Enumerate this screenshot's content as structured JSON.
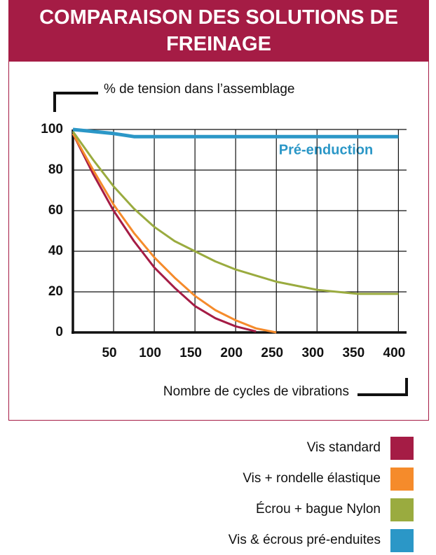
{
  "chart_data": {
    "type": "line",
    "title": "COMPARAISON DES SOLUTIONS DE FREINAGE",
    "y_label": "% de tension dans l’assemblage",
    "x_label": "Nombre de cycles de vibrations",
    "annotation": "Pré-enduction",
    "x": [
      0,
      25,
      50,
      75,
      100,
      125,
      150,
      175,
      200,
      225,
      250,
      300,
      350,
      400
    ],
    "series": [
      {
        "name": "Vis standard",
        "color": "#a51c45",
        "values": [
          98,
          78,
          60,
          45,
          32,
          22,
          13,
          7,
          3,
          0.5,
          null,
          null,
          null,
          null
        ]
      },
      {
        "name": "Vis + rondelle élastique",
        "color": "#f58b2b",
        "values": [
          98,
          80,
          63,
          49,
          37,
          27,
          18,
          11,
          6,
          2,
          0,
          null,
          null,
          null
        ]
      },
      {
        "name": "Écrou + bague Nylon",
        "color": "#9aab3f",
        "values": [
          99,
          85,
          72,
          61,
          52,
          45,
          40,
          35,
          31,
          28,
          25,
          21,
          19,
          19
        ]
      },
      {
        "name": "Vis & écrous pré-enduites",
        "color": "#2b97c7",
        "values": [
          100,
          99,
          98,
          96.5,
          96.5,
          96.5,
          96.5,
          96.5,
          96.5,
          96.5,
          96.5,
          96.5,
          96.5,
          96.5
        ]
      }
    ],
    "xlim": [
      0,
      410
    ],
    "ylim": [
      0,
      100
    ],
    "xticks": [
      50,
      100,
      150,
      200,
      250,
      300,
      350,
      400
    ],
    "yticks": [
      0,
      20,
      40,
      60,
      80,
      100
    ],
    "grid": true
  }
}
